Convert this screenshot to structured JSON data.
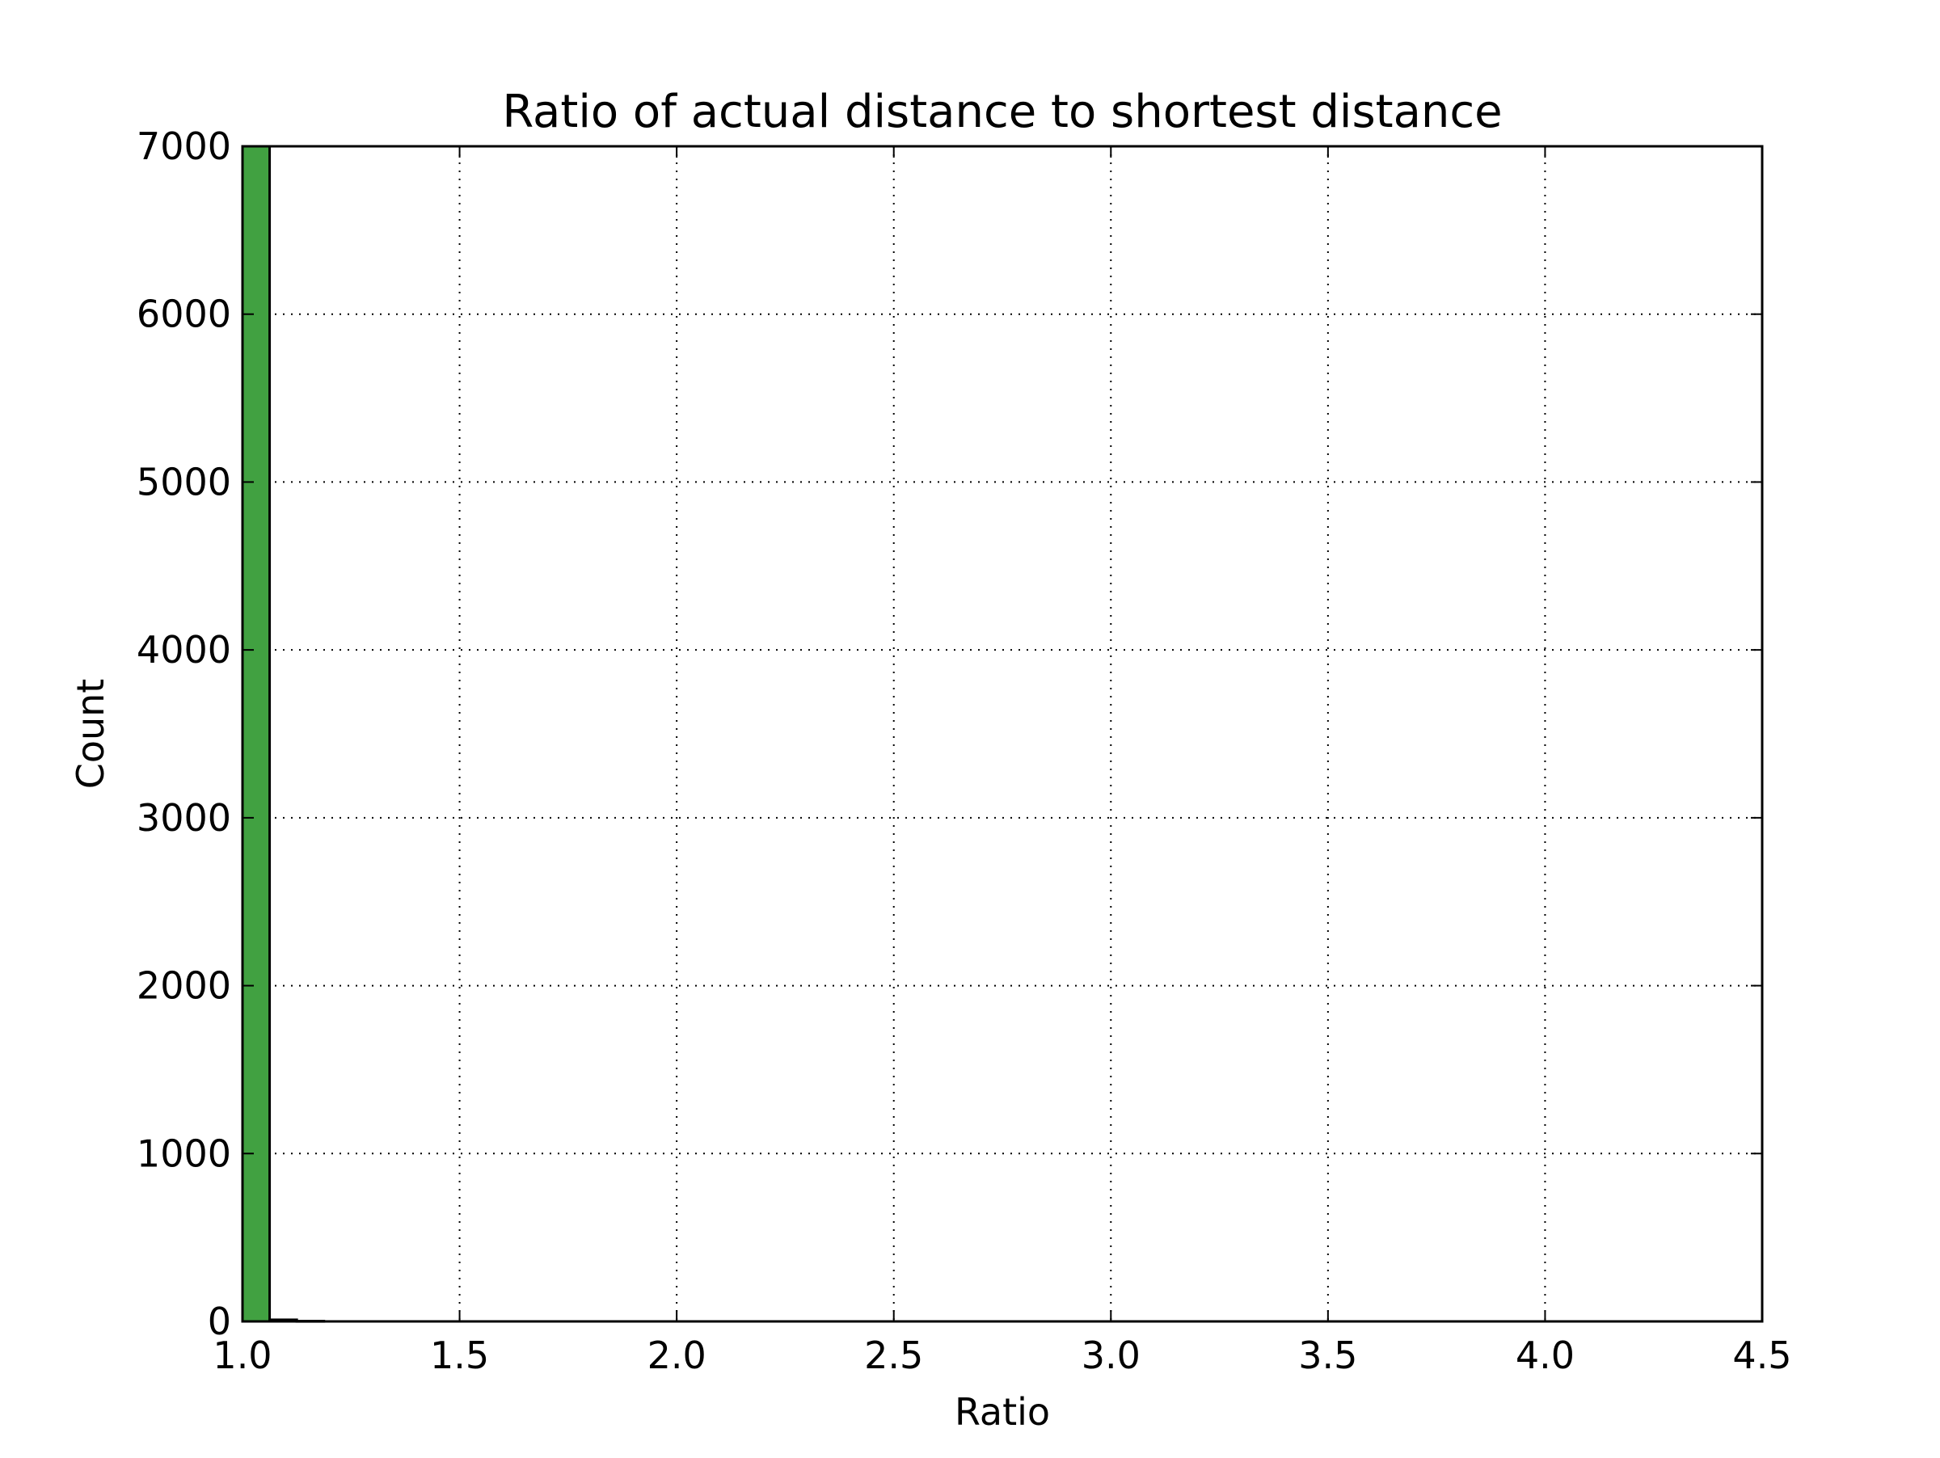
{
  "chart_data": {
    "type": "bar",
    "title": "Ratio of actual distance to shortest distance",
    "xlabel": "Ratio",
    "ylabel": "Count",
    "xlim": [
      1.0,
      4.5
    ],
    "ylim": [
      0,
      7000
    ],
    "xticks": [
      "1.0",
      "1.5",
      "2.0",
      "2.5",
      "3.0",
      "3.5",
      "4.0",
      "4.5"
    ],
    "yticks": [
      "0",
      "1000",
      "2000",
      "3000",
      "4000",
      "5000",
      "6000",
      "7000"
    ],
    "grid": true,
    "bin_width": 0.0625,
    "bins": [
      {
        "x0": 1.0,
        "x1": 1.0625,
        "count": 7000
      },
      {
        "x0": 1.0625,
        "x1": 1.125,
        "count": 10
      },
      {
        "x0": 1.125,
        "x1": 1.1875,
        "count": 2
      }
    ],
    "bar_color": "#41a141"
  }
}
